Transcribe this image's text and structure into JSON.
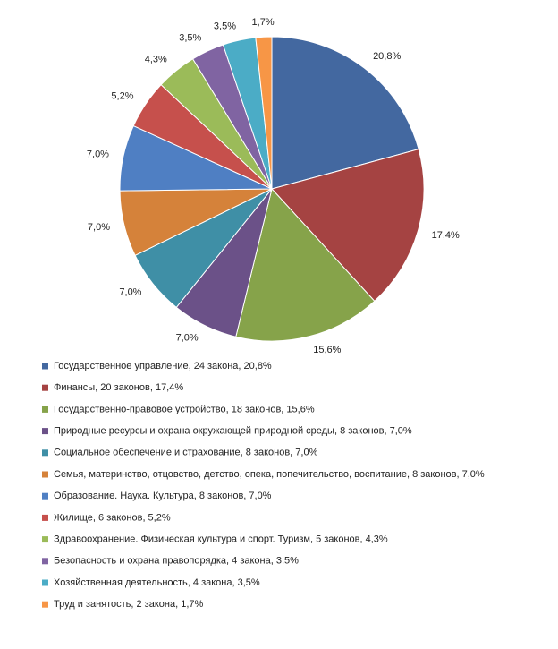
{
  "chart_data": {
    "type": "pie",
    "categories": [
      "Государственное управление, 24 закона, 20,8%",
      "Финансы, 20 законов, 17,4%",
      "Государственно-правовое устройство, 18 законов, 15,6%",
      "Природные ресурсы и охрана окружающей природной среды, 8 законов, 7,0%",
      "Социальное обеспечение и страхование, 8 законов, 7,0%",
      "Семья, материнство, отцовство, детство, опека, попечительство, воспитание, 8 законов, 7,0%",
      "Образование. Наука. Культура, 8 законов, 7,0%",
      "Жилище, 6 законов, 5,2%",
      "Здравоохранение. Физическая культура и спорт. Туризм, 5 законов, 4,3%",
      "Безопасность и охрана правопорядка, 4 закона, 3,5%",
      "Хозяйственная деятельность, 4 закона, 3,5%",
      "Труд и занятость, 2 закона, 1,7%"
    ],
    "values": [
      20.8,
      17.4,
      15.6,
      7.0,
      7.0,
      7.0,
      7.0,
      5.2,
      4.3,
      3.5,
      3.5,
      1.7
    ],
    "value_labels": [
      "20,8%",
      "17,4%",
      "15,6%",
      "7,0%",
      "7,0%",
      "7,0%",
      "7,0%",
      "5,2%",
      "4,3%",
      "3,5%",
      "3,5%",
      "1,7%"
    ],
    "colors": [
      "#4368a0",
      "#a54342",
      "#86a34a",
      "#6b5188",
      "#3f8fa6",
      "#d5823a",
      "#4f7fc3",
      "#c6504c",
      "#9bbb59",
      "#8064a2",
      "#4bacc6",
      "#f79646"
    ]
  }
}
